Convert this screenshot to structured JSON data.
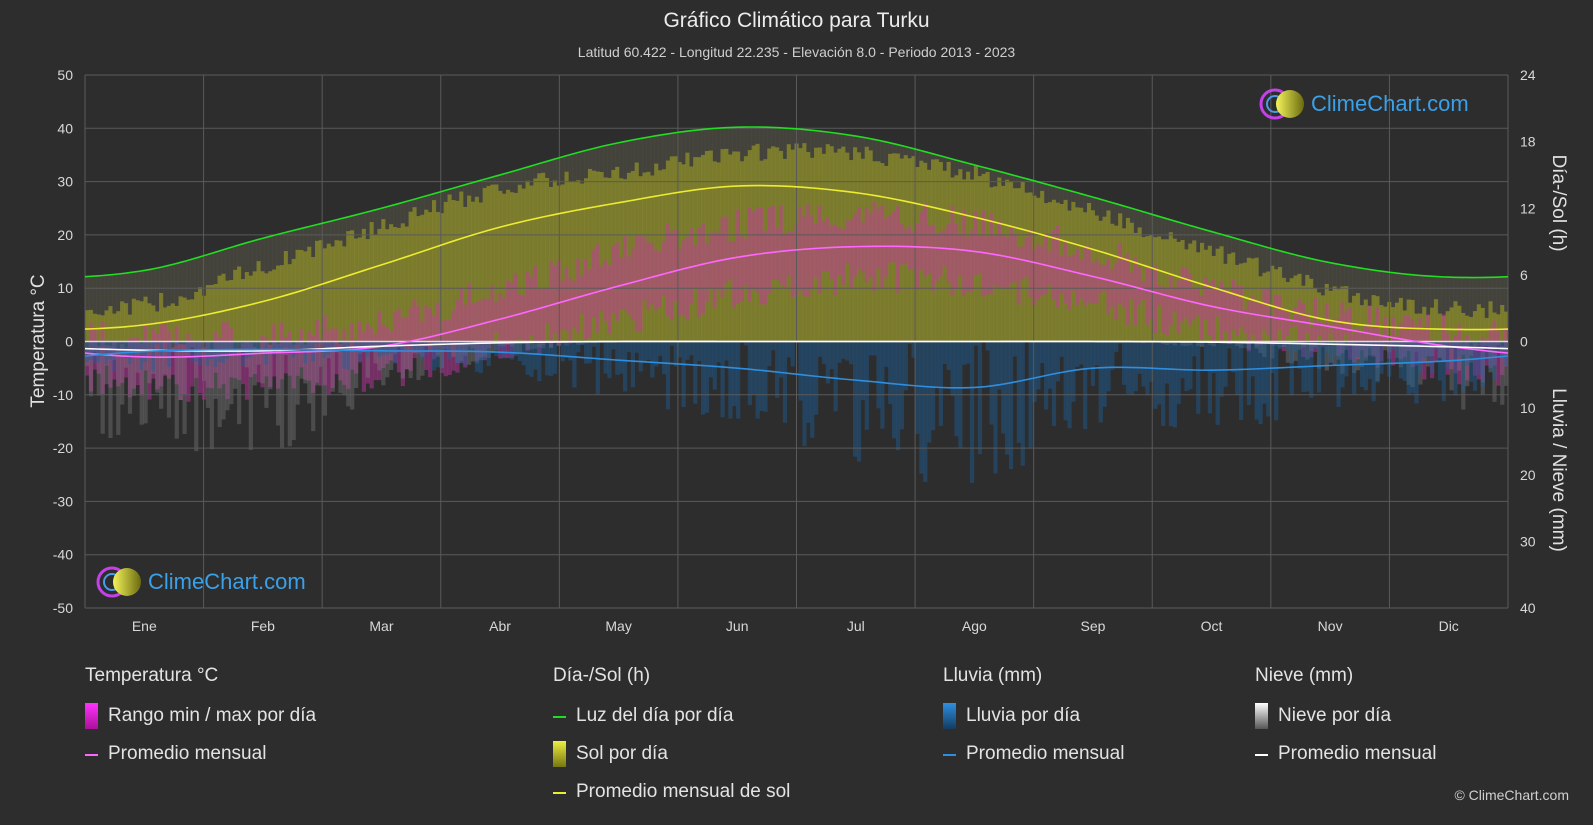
{
  "title": "Gráfico Climático para Turku",
  "subtitle": "Latitud 60.422 - Longitud 22.235 - Elevación 8.0 - Periodo 2013 - 2023",
  "logo_text": "ClimeChart.com",
  "copyright": "© ClimeChart.com",
  "legend": {
    "temp_head": "Temperatura °C",
    "temp_range": "Rango min / max por día",
    "temp_avg": "Promedio mensual",
    "sun_head": "Día-/Sol (h)",
    "daylight": "Luz del día por día",
    "sun_day": "Sol por día",
    "sun_avg": "Promedio mensual de sol",
    "rain_head": "Lluvia (mm)",
    "rain_day": "Lluvia por día",
    "rain_avg": "Promedio mensual",
    "snow_head": "Nieve (mm)",
    "snow_day": "Nieve por día",
    "snow_avg": "Promedio mensual"
  },
  "colors": {
    "background": "#2d2d2d",
    "daylight": "#22dd22",
    "sunshine_line": "#ecec30",
    "sunshine_fill": "#aaaa22",
    "temp_line": "#ff66ff",
    "temp_fill": "#cc33aa",
    "rain_line": "#2e8fe0",
    "rain_fill": "#1f5f99",
    "snow_line": "#ffffff",
    "snow_fill": "#888888"
  },
  "chart_data": {
    "type": "line",
    "categories": [
      "Ene",
      "Feb",
      "Mar",
      "Abr",
      "May",
      "Jun",
      "Jul",
      "Ago",
      "Sep",
      "Oct",
      "Nov",
      "Dic"
    ],
    "y_left_label": "Temperatura °C",
    "y_right_top_label": "Día-/Sol (h)",
    "y_right_bottom_label": "Lluvia / Nieve (mm)",
    "y_left_ticks": [
      50,
      40,
      30,
      20,
      10,
      0,
      -10,
      -20,
      -30,
      -40,
      -50
    ],
    "y_right_top_ticks": [
      24,
      18,
      12,
      6,
      0
    ],
    "y_right_bottom_ticks": [
      10,
      20,
      30,
      40
    ],
    "ylim_left": [
      -50,
      50
    ],
    "ylim_hours": [
      0,
      24
    ],
    "ylim_precip": [
      0,
      40
    ],
    "grid": true,
    "series": [
      {
        "name": "Luz del día por día",
        "unit": "h",
        "values": [
          6.4,
          9.3,
          12.0,
          15.0,
          17.9,
          19.3,
          18.5,
          15.9,
          13.0,
          9.9,
          7.1,
          5.8
        ]
      },
      {
        "name": "Promedio mensual de sol",
        "unit": "h",
        "values": [
          1.5,
          3.6,
          6.9,
          10.3,
          12.5,
          14.0,
          13.4,
          11.2,
          8.3,
          4.9,
          1.9,
          1.1
        ]
      },
      {
        "name": "Sol por día",
        "unit": "h",
        "values": [
          3.3,
          6.8,
          10.4,
          13.8,
          15.2,
          16.9,
          16.9,
          15.0,
          11.6,
          8.1,
          4.6,
          3.0
        ]
      },
      {
        "name": "Promedio mensual",
        "unit": "°C",
        "values": [
          -2.9,
          -2.2,
          -0.9,
          4.2,
          10.4,
          15.8,
          17.8,
          16.9,
          12.2,
          6.6,
          2.8,
          -0.9
        ]
      },
      {
        "name": "Rango min / max por día",
        "unit": "°C",
        "min": [
          -8,
          -8,
          -6,
          -1,
          4,
          9,
          12,
          11,
          7,
          2,
          -1,
          -5
        ],
        "max": [
          1,
          1,
          4,
          10,
          17,
          22,
          24,
          22,
          17,
          10,
          5,
          2
        ]
      },
      {
        "name": "Promedio mensual",
        "unit": "mm",
        "kind": "rain",
        "values": [
          1.5,
          1.2,
          1.4,
          1.6,
          2.8,
          4.0,
          5.8,
          6.9,
          4.0,
          4.3,
          3.6,
          2.9
        ]
      },
      {
        "name": "Promedio mensual",
        "unit": "mm",
        "kind": "snow",
        "values": [
          1.3,
          1.4,
          0.7,
          0.2,
          0.0,
          0.0,
          0.0,
          0.0,
          0.0,
          0.1,
          0.4,
          0.8
        ]
      }
    ]
  }
}
